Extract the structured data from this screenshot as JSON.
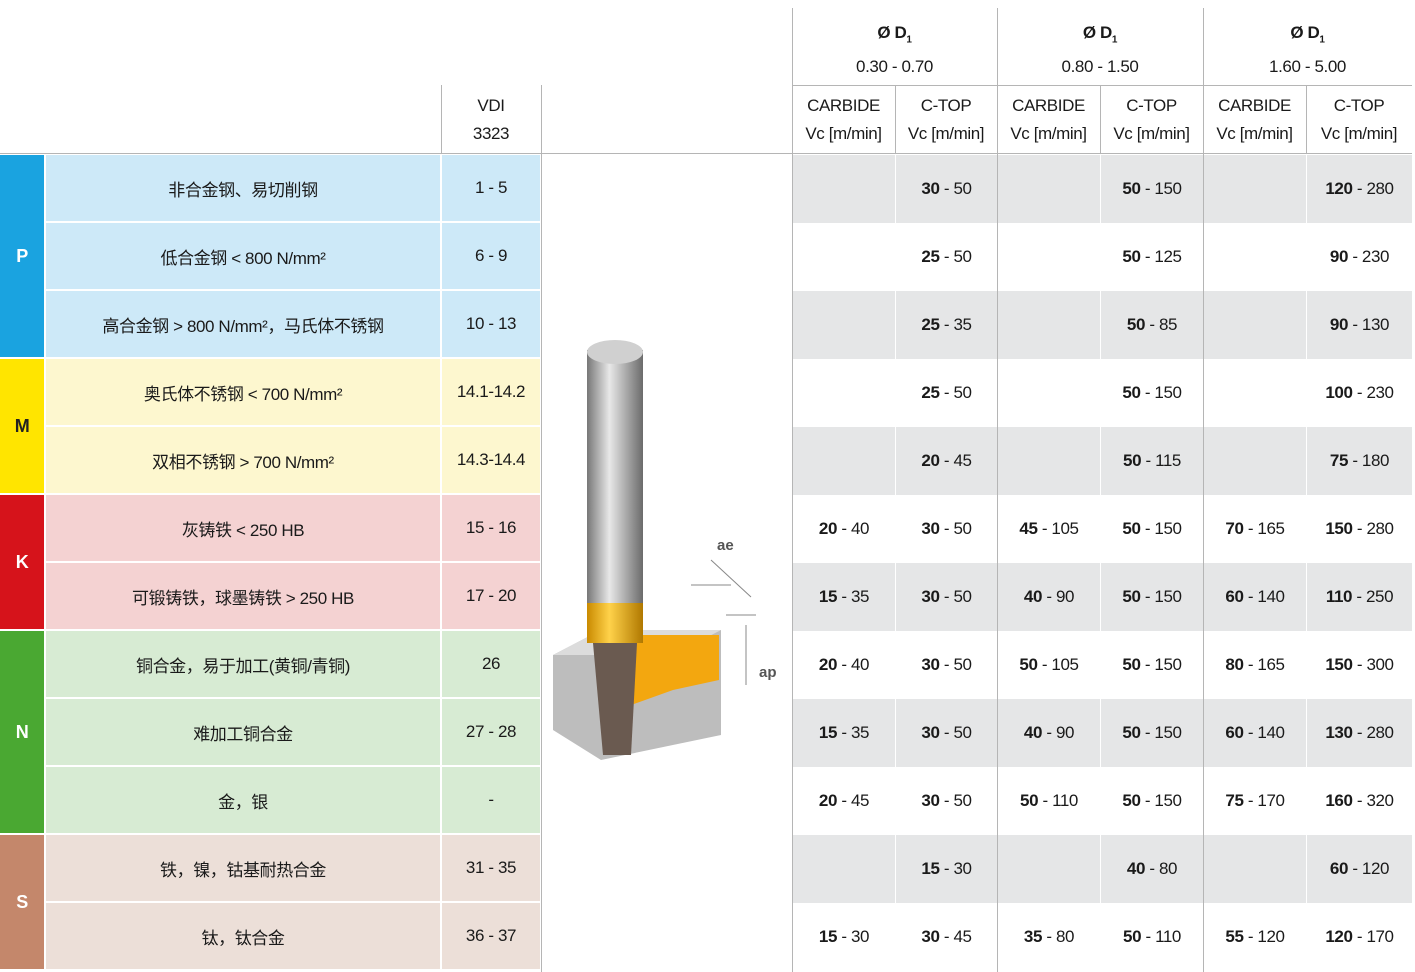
{
  "header": {
    "vdi_label": "VDI",
    "vdi_code": "3323",
    "groups": [
      {
        "symbol": "Ø D",
        "sub": "1",
        "range": "0.30 - 0.70"
      },
      {
        "symbol": "Ø D",
        "sub": "1",
        "range": "0.80 - 1.50"
      },
      {
        "symbol": "Ø D",
        "sub": "1",
        "range": "1.60 - 5.00"
      }
    ],
    "columns": [
      {
        "grade": "CARBIDE",
        "unit": "Vc [m/min]"
      },
      {
        "grade": "C-TOP",
        "unit": "Vc [m/min]"
      },
      {
        "grade": "CARBIDE",
        "unit": "Vc [m/min]"
      },
      {
        "grade": "C-TOP",
        "unit": "Vc [m/min]"
      },
      {
        "grade": "CARBIDE",
        "unit": "Vc [m/min]"
      },
      {
        "grade": "C-TOP",
        "unit": "Vc [m/min]"
      }
    ]
  },
  "image": {
    "labels": [
      "ae",
      "ap"
    ]
  },
  "separator": " - ",
  "groups": [
    {
      "letter": "P",
      "rows": [
        {
          "material": "非合金钢、易切削钢",
          "vdi": "1 - 5",
          "speeds": [
            null,
            {
              "min": 30,
              "max": 50
            },
            null,
            {
              "min": 50,
              "max": 150
            },
            null,
            {
              "min": 120,
              "max": 280
            }
          ]
        },
        {
          "material": "低合金钢 < 800 N/mm²",
          "vdi": "6 - 9",
          "speeds": [
            null,
            {
              "min": 25,
              "max": 50
            },
            null,
            {
              "min": 50,
              "max": 125
            },
            null,
            {
              "min": 90,
              "max": 230
            }
          ]
        },
        {
          "material": "高合金钢 > 800 N/mm²，马氏体不锈钢",
          "vdi": "10 - 13",
          "speeds": [
            null,
            {
              "min": 25,
              "max": 35
            },
            null,
            {
              "min": 50,
              "max": 85
            },
            null,
            {
              "min": 90,
              "max": 130
            }
          ]
        }
      ]
    },
    {
      "letter": "M",
      "rows": [
        {
          "material": "奥氏体不锈钢 < 700 N/mm²",
          "vdi": "14.1-14.2",
          "speeds": [
            null,
            {
              "min": 25,
              "max": 50
            },
            null,
            {
              "min": 50,
              "max": 150
            },
            null,
            {
              "min": 100,
              "max": 230
            }
          ]
        },
        {
          "material": "双相不锈钢 > 700 N/mm²",
          "vdi": "14.3-14.4",
          "speeds": [
            null,
            {
              "min": 20,
              "max": 45
            },
            null,
            {
              "min": 50,
              "max": 115
            },
            null,
            {
              "min": 75,
              "max": 180
            }
          ]
        }
      ]
    },
    {
      "letter": "K",
      "rows": [
        {
          "material": "灰铸铁 < 250 HB",
          "vdi": "15 - 16",
          "speeds": [
            {
              "min": 20,
              "max": 40
            },
            {
              "min": 30,
              "max": 50
            },
            {
              "min": 45,
              "max": 105
            },
            {
              "min": 50,
              "max": 150
            },
            {
              "min": 70,
              "max": 165
            },
            {
              "min": 150,
              "max": 280
            }
          ]
        },
        {
          "material": "可锻铸铁，球墨铸铁 > 250 HB",
          "vdi": "17 - 20",
          "speeds": [
            {
              "min": 15,
              "max": 35
            },
            {
              "min": 30,
              "max": 50
            },
            {
              "min": 40,
              "max": 90
            },
            {
              "min": 50,
              "max": 150
            },
            {
              "min": 60,
              "max": 140
            },
            {
              "min": 110,
              "max": 250
            }
          ]
        }
      ]
    },
    {
      "letter": "N",
      "rows": [
        {
          "material": "铜合金，易于加工(黄铜/青铜)",
          "vdi": "26",
          "speeds": [
            {
              "min": 20,
              "max": 40
            },
            {
              "min": 30,
              "max": 50
            },
            {
              "min": 50,
              "max": 105
            },
            {
              "min": 50,
              "max": 150
            },
            {
              "min": 80,
              "max": 165
            },
            {
              "min": 150,
              "max": 300
            }
          ]
        },
        {
          "material": "难加工铜合金",
          "vdi": "27 - 28",
          "speeds": [
            {
              "min": 15,
              "max": 35
            },
            {
              "min": 30,
              "max": 50
            },
            {
              "min": 40,
              "max": 90
            },
            {
              "min": 50,
              "max": 150
            },
            {
              "min": 60,
              "max": 140
            },
            {
              "min": 130,
              "max": 280
            }
          ]
        },
        {
          "material": "金，银",
          "vdi": "-",
          "speeds": [
            {
              "min": 20,
              "max": 45
            },
            {
              "min": 30,
              "max": 50
            },
            {
              "min": 50,
              "max": 110
            },
            {
              "min": 50,
              "max": 150
            },
            {
              "min": 75,
              "max": 170
            },
            {
              "min": 160,
              "max": 320
            }
          ]
        }
      ]
    },
    {
      "letter": "S",
      "rows": [
        {
          "material": "铁，镍，钴基耐热合金",
          "vdi": "31 - 35",
          "speeds": [
            null,
            {
              "min": 15,
              "max": 30
            },
            null,
            {
              "min": 40,
              "max": 80
            },
            null,
            {
              "min": 60,
              "max": 120
            }
          ]
        },
        {
          "material": "钛，钛合金",
          "vdi": "36 - 37",
          "speeds": [
            {
              "min": 15,
              "max": 30
            },
            {
              "min": 30,
              "max": 45
            },
            {
              "min": 35,
              "max": 80
            },
            {
              "min": 50,
              "max": 110
            },
            {
              "min": 55,
              "max": 120
            },
            {
              "min": 120,
              "max": 170
            }
          ]
        }
      ]
    }
  ]
}
